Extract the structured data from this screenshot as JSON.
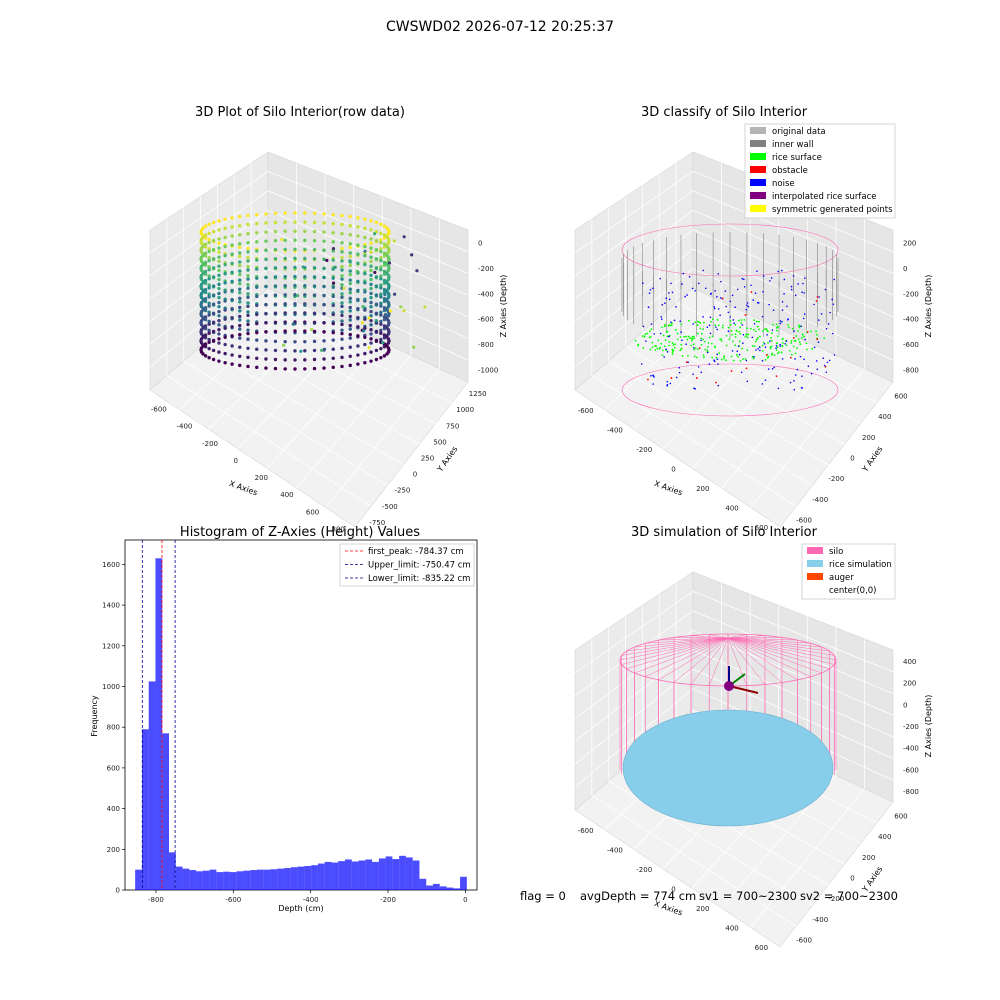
{
  "figure": {
    "suptitle": "CWSWD02 2026-07-12 20:25:37",
    "footer": {
      "flag": "flag = 0",
      "avg_depth": "avgDepth = 774 cm",
      "sv1": "sv1 = 700~2300",
      "sv2": "sv2 = 700~2300"
    }
  },
  "panels": {
    "raw": {
      "title": "3D Plot of Silo Interior(row data)",
      "xlabel": "X Axies",
      "ylabel": "Y Axies",
      "zlabel": "Z Axies (Depth)",
      "xticks": [
        "-600",
        "-400",
        "-200",
        "0",
        "200",
        "400",
        "600",
        "800"
      ],
      "yticks": [
        "-750",
        "-500",
        "-250",
        "0",
        "250",
        "500",
        "750",
        "1000",
        "1250"
      ],
      "zticks": [
        "0",
        "-200",
        "-400",
        "-600",
        "-800",
        "-1000"
      ],
      "colormap": [
        "#440154",
        "#3b528b",
        "#21918c",
        "#5ec962",
        "#fde725"
      ]
    },
    "classify": {
      "title": "3D classify of Silo Interior",
      "xlabel": "X Axies",
      "ylabel": "Y Axies",
      "zlabel": "Z Axies (Depth)",
      "xticks": [
        "-600",
        "-400",
        "-200",
        "0",
        "200",
        "400",
        "600"
      ],
      "yticks": [
        "-600",
        "-400",
        "-200",
        "0",
        "200",
        "400",
        "600"
      ],
      "zticks": [
        "200",
        "0",
        "-200",
        "-400",
        "-600",
        "-800"
      ],
      "legend": [
        {
          "label": "original data",
          "color": "#b4b4b4"
        },
        {
          "label": "inner wall",
          "color": "#808080"
        },
        {
          "label": "rice surface",
          "color": "#00ff00"
        },
        {
          "label": "obstacle",
          "color": "#ff0000"
        },
        {
          "label": "noise",
          "color": "#0000ff"
        },
        {
          "label": "interpolated rice surface",
          "color": "#800080"
        },
        {
          "label": "symmetric generated points",
          "color": "#ffff00"
        }
      ]
    },
    "simulation": {
      "title": "3D simulation of Silo Interior",
      "xlabel": "X Axies",
      "ylabel": "Y Axies",
      "zlabel": "Z Axies (Depth)",
      "xticks": [
        "-600",
        "-400",
        "-200",
        "0",
        "200",
        "400",
        "600"
      ],
      "yticks": [
        "-600",
        "-400",
        "-200",
        "0",
        "200",
        "400",
        "600"
      ],
      "zticks": [
        "400",
        "200",
        "0",
        "-200",
        "-400",
        "-600",
        "-800"
      ],
      "legend": [
        {
          "label": "silo",
          "color": "#ff69b4"
        },
        {
          "label": "rice simulation",
          "color": "#87ceeb"
        },
        {
          "label": "auger",
          "color": "#ff4500"
        },
        {
          "label": "center(0,0)",
          "color": ""
        }
      ]
    }
  },
  "chart_data": {
    "type": "bar",
    "title": "Histogram of Z-Axies (Height) Values",
    "xlabel": "Depth (cm)",
    "ylabel": "Frequency",
    "xlim": [
      -880,
      30
    ],
    "ylim": [
      0,
      1720
    ],
    "xticks": [
      -800,
      -600,
      -400,
      -200,
      0
    ],
    "yticks": [
      0,
      200,
      400,
      600,
      800,
      1000,
      1200,
      1400,
      1600
    ],
    "bar_color": "#0000ff",
    "bin_width": 17.5,
    "bins": [
      {
        "x": -845,
        "y": 100
      },
      {
        "x": -827.5,
        "y": 790
      },
      {
        "x": -810,
        "y": 1025
      },
      {
        "x": -792.5,
        "y": 1630
      },
      {
        "x": -775,
        "y": 770
      },
      {
        "x": -757.5,
        "y": 185
      },
      {
        "x": -740,
        "y": 115
      },
      {
        "x": -722.5,
        "y": 105
      },
      {
        "x": -705,
        "y": 98
      },
      {
        "x": -687.5,
        "y": 92
      },
      {
        "x": -670,
        "y": 95
      },
      {
        "x": -652.5,
        "y": 100
      },
      {
        "x": -635,
        "y": 88
      },
      {
        "x": -617.5,
        "y": 90
      },
      {
        "x": -600,
        "y": 88
      },
      {
        "x": -582.5,
        "y": 92
      },
      {
        "x": -565,
        "y": 95
      },
      {
        "x": -547.5,
        "y": 98
      },
      {
        "x": -530,
        "y": 100
      },
      {
        "x": -512.5,
        "y": 100
      },
      {
        "x": -495,
        "y": 102
      },
      {
        "x": -477.5,
        "y": 105
      },
      {
        "x": -460,
        "y": 108
      },
      {
        "x": -442.5,
        "y": 112
      },
      {
        "x": -425,
        "y": 115
      },
      {
        "x": -407.5,
        "y": 118
      },
      {
        "x": -390,
        "y": 122
      },
      {
        "x": -372.5,
        "y": 130
      },
      {
        "x": -355,
        "y": 138
      },
      {
        "x": -337.5,
        "y": 135
      },
      {
        "x": -320,
        "y": 142
      },
      {
        "x": -302.5,
        "y": 150
      },
      {
        "x": -285,
        "y": 140
      },
      {
        "x": -267.5,
        "y": 145
      },
      {
        "x": -250,
        "y": 150
      },
      {
        "x": -232.5,
        "y": 138
      },
      {
        "x": -215,
        "y": 155
      },
      {
        "x": -197.5,
        "y": 165
      },
      {
        "x": -180,
        "y": 152
      },
      {
        "x": -162.5,
        "y": 168
      },
      {
        "x": -145,
        "y": 160
      },
      {
        "x": -127.5,
        "y": 145
      },
      {
        "x": -110,
        "y": 55
      },
      {
        "x": -92.5,
        "y": 22
      },
      {
        "x": -75,
        "y": 30
      },
      {
        "x": -57.5,
        "y": 18
      },
      {
        "x": -40,
        "y": 12
      },
      {
        "x": -22.5,
        "y": 8
      },
      {
        "x": -5,
        "y": 65
      }
    ],
    "vlines": [
      {
        "label": "first_peak: -784.37 cm",
        "x": -784.37,
        "color": "#ff0000"
      },
      {
        "label": "Upper_limit: -750.47 cm",
        "x": -750.47,
        "color": "#00008b"
      },
      {
        "label": "Lower_limit: -835.22 cm",
        "x": -835.22,
        "color": "#00008b"
      }
    ]
  }
}
